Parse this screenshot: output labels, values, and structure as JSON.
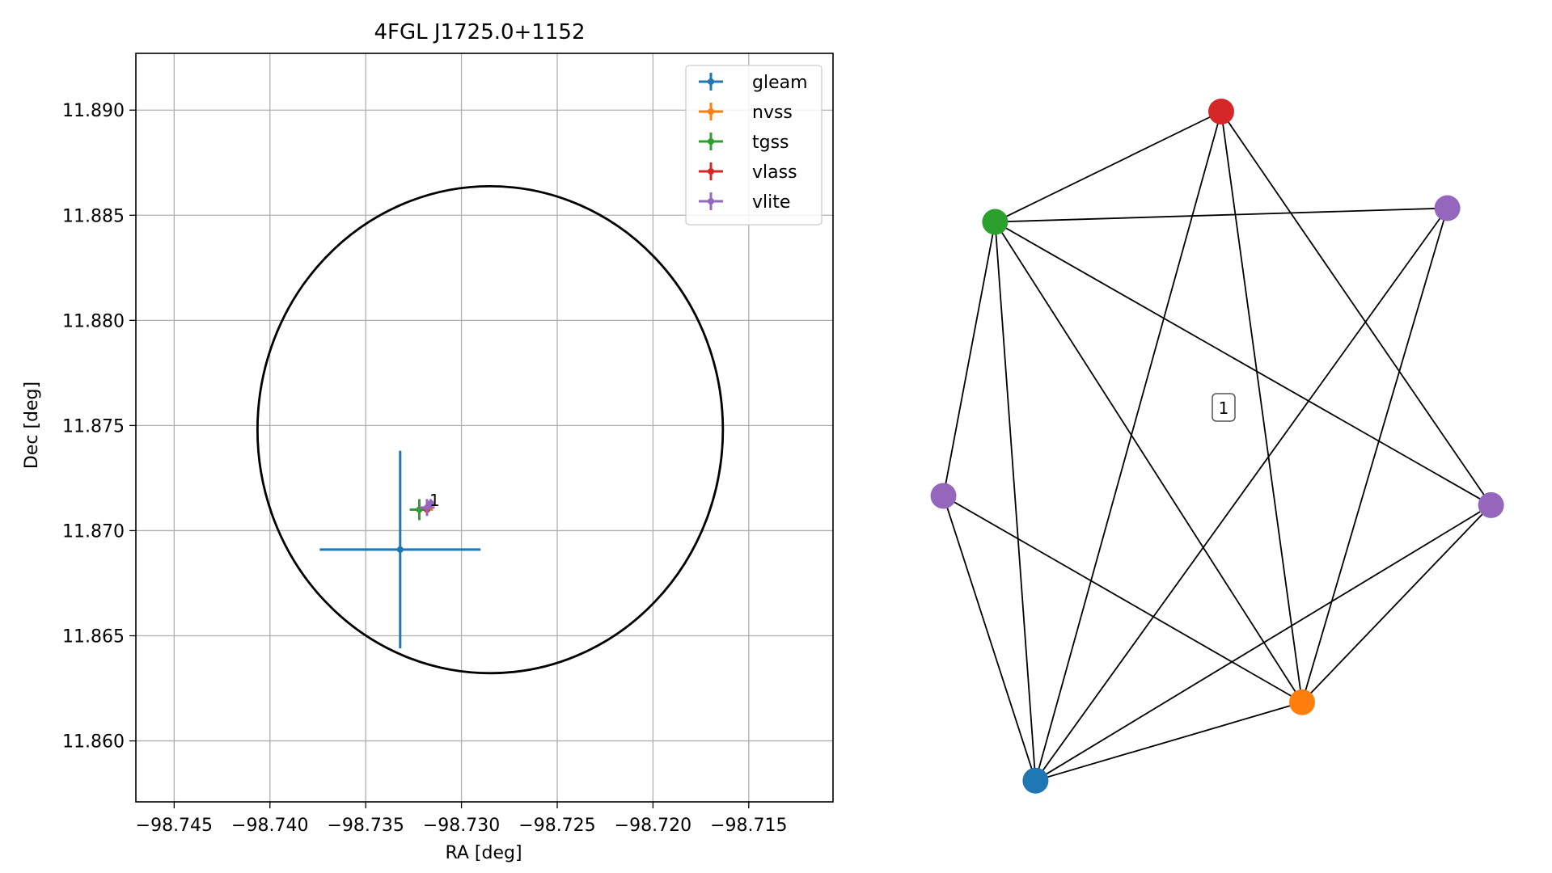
{
  "chart_data": [
    {
      "type": "scatter",
      "title": "4FGL J1725.0+1152",
      "xlabel": "RA [deg]",
      "ylabel": "Dec [deg]",
      "xlim": [
        -98.747,
        -98.7106
      ],
      "ylim": [
        11.8571,
        11.8927
      ],
      "x_ticks": [
        -98.745,
        -98.74,
        -98.735,
        -98.73,
        -98.725,
        -98.72,
        -98.715
      ],
      "x_tick_labels": [
        "−98.745",
        "−98.740",
        "−98.735",
        "−98.730",
        "−98.725",
        "−98.720",
        "−98.715"
      ],
      "y_ticks": [
        11.86,
        11.865,
        11.87,
        11.875,
        11.88,
        11.885,
        11.89
      ],
      "y_tick_labels": [
        "11.860",
        "11.865",
        "11.870",
        "11.875",
        "11.880",
        "11.885",
        "11.890"
      ],
      "grid": true,
      "legend_placement": "top-right",
      "circle": {
        "center": [
          -98.7285,
          11.8748
        ],
        "radius_x": 0.01215,
        "radius_y": 0.01158,
        "color": "#000000"
      },
      "series": [
        {
          "name": "gleam",
          "color": "#1f77b4",
          "x": -98.7332,
          "y": 11.8691,
          "xerr": 0.0042,
          "yerr": 0.0047
        },
        {
          "name": "nvss",
          "color": "#ff7f0e",
          "x": -98.7318,
          "y": 11.871,
          "xerr": 0.0003,
          "yerr": 0.0002
        },
        {
          "name": "tgss",
          "color": "#2ca02c",
          "x": -98.7322,
          "y": 11.871,
          "xerr": 0.0005,
          "yerr": 0.0005
        },
        {
          "name": "vlass",
          "color": "#d62728",
          "x": -98.7318,
          "y": 11.871,
          "xerr": 5e-05,
          "yerr": 5e-05
        },
        {
          "name": "vlite",
          "color": "#9467bd",
          "x": -98.7318,
          "y": 11.8711,
          "xerr": 0.0004,
          "yerr": 0.0004
        },
        {
          "name": "vlite",
          "color": "#9467bd",
          "x": -98.7316,
          "y": 11.8713,
          "xerr": 0.0001,
          "yerr": 0.0002,
          "in_legend": false
        }
      ],
      "annotation": {
        "text": "1",
        "x": -98.7318,
        "y": 11.8711
      }
    },
    {
      "type": "network",
      "nodes": [
        {
          "id": "vlass",
          "color": "#d62728",
          "x": 0.0,
          "y": 1.0
        },
        {
          "id": "vlite_a",
          "color": "#9467bd",
          "x": 0.766,
          "y": 0.677
        },
        {
          "id": "vlite_b",
          "color": "#9467bd",
          "x": 0.914,
          "y": -0.316
        },
        {
          "id": "nvss",
          "color": "#ff7f0e",
          "x": 0.274,
          "y": -0.975
        },
        {
          "id": "gleam",
          "color": "#1f77b4",
          "x": -0.629,
          "y": -1.237
        },
        {
          "id": "vlite_c",
          "color": "#9467bd",
          "x": -0.941,
          "y": -0.285
        },
        {
          "id": "tgss",
          "color": "#2ca02c",
          "x": -0.766,
          "y": 0.631
        }
      ],
      "edges": [
        [
          "tgss",
          "vlass"
        ],
        [
          "tgss",
          "vlite_a"
        ],
        [
          "tgss",
          "vlite_b"
        ],
        [
          "tgss",
          "nvss"
        ],
        [
          "tgss",
          "gleam"
        ],
        [
          "tgss",
          "vlite_c"
        ],
        [
          "vlass",
          "vlite_b"
        ],
        [
          "vlass",
          "nvss"
        ],
        [
          "vlass",
          "gleam"
        ],
        [
          "vlite_a",
          "nvss"
        ],
        [
          "vlite_a",
          "gleam"
        ],
        [
          "vlite_b",
          "nvss"
        ],
        [
          "vlite_b",
          "gleam"
        ],
        [
          "nvss",
          "gleam"
        ],
        [
          "nvss",
          "vlite_c"
        ],
        [
          "gleam",
          "vlite_c"
        ]
      ],
      "group_label": "1"
    }
  ]
}
